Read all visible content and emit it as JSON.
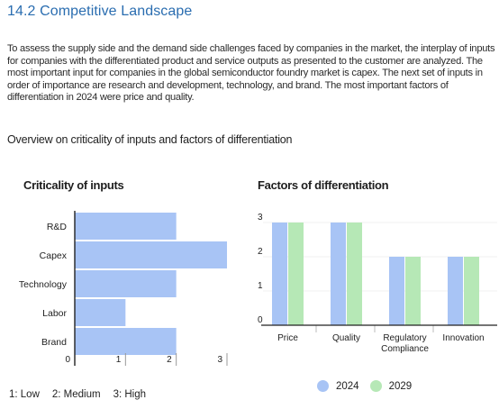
{
  "section_title": "14.2 Competitive Landscape",
  "intro_text": "To assess the supply side and the demand side challenges faced by companies in the market, the interplay of inputs for companies with the differentiated product and service outputs as presented to the customer are analyzed. The most important input for companies in the global semiconductor foundry market is capex. The next set of inputs in order of importance are research and development, technology, and brand. The most important factors of differentiation in 2024 were price and quality.",
  "overview_title": "Overview on criticality of inputs and factors of differentiation",
  "colors": {
    "title_blue": "#2a6db0",
    "series_2024": "#a8c4f5",
    "series_2029": "#b6e8b6"
  },
  "scale_legend": [
    "1: Low",
    "2: Medium",
    "3: High"
  ],
  "chart_data": [
    {
      "type": "bar",
      "orientation": "horizontal",
      "title": "Criticality of inputs",
      "categories": [
        "R&D",
        "Capex",
        "Technology",
        "Labor",
        "Brand"
      ],
      "values": [
        2,
        3,
        2,
        1,
        2
      ],
      "xlim": [
        0,
        3
      ],
      "xticks": [
        "0",
        "1",
        "2",
        "3"
      ]
    },
    {
      "type": "bar",
      "title": "Factors of differentiation",
      "categories": [
        "Price",
        "Quality",
        "Regulatory Compliance",
        "Innovation"
      ],
      "series": [
        {
          "name": "2024",
          "values": [
            3,
            3,
            2,
            2
          ]
        },
        {
          "name": "2029",
          "values": [
            3,
            3,
            2,
            2
          ]
        }
      ],
      "ylim": [
        0,
        3
      ],
      "yticks": [
        "0",
        "1",
        "2",
        "3"
      ],
      "legend": "bottom"
    }
  ]
}
